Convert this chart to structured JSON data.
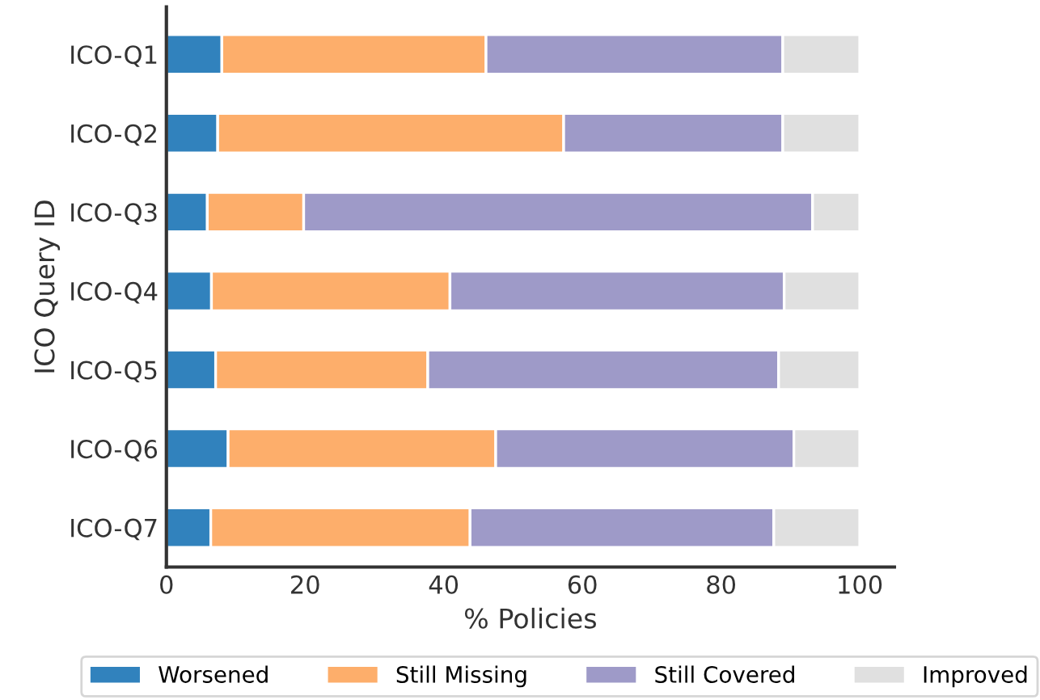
{
  "chart_data": {
    "type": "bar",
    "orientation": "horizontal",
    "stacked": true,
    "categories": [
      "ICO-Q1",
      "ICO-Q2",
      "ICO-Q3",
      "ICO-Q4",
      "ICO-Q5",
      "ICO-Q6",
      "ICO-Q7"
    ],
    "series": [
      {
        "name": "Worsened",
        "color": "#3182bd",
        "values": [
          8.0,
          7.4,
          5.9,
          6.5,
          7.1,
          8.9,
          6.4
        ]
      },
      {
        "name": "Still Missing",
        "color": "#fdae6b",
        "values": [
          38.1,
          49.9,
          13.9,
          34.4,
          30.6,
          38.6,
          37.4
        ]
      },
      {
        "name": "Still Covered",
        "color": "#9e9ac8",
        "values": [
          42.8,
          31.6,
          73.4,
          48.2,
          50.6,
          43.0,
          43.8
        ]
      },
      {
        "name": "Improved",
        "color": "#e0e0e0",
        "values": [
          11.1,
          11.1,
          6.8,
          10.9,
          11.7,
          9.5,
          12.4
        ]
      }
    ],
    "xlabel": "% Policies",
    "ylabel": "ICO Query ID",
    "xlim": [
      0,
      105
    ],
    "xticks": [
      0,
      20,
      40,
      60,
      80,
      100
    ],
    "grid": false,
    "legend": "bottom"
  }
}
